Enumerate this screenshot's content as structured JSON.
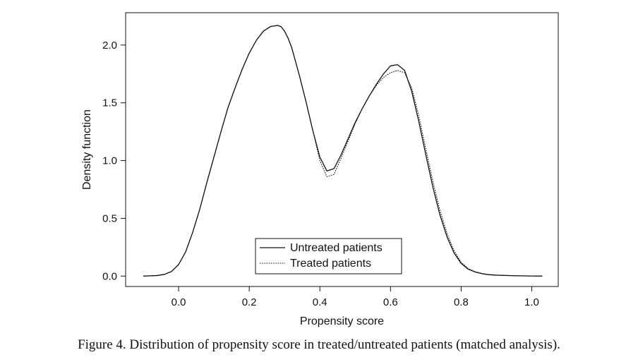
{
  "chart_data": {
    "type": "line",
    "title": "",
    "xlabel": "Propensity score",
    "ylabel": "Density function",
    "xlim": [
      -0.15,
      1.075
    ],
    "ylim": [
      -0.09,
      2.28
    ],
    "xticks": [
      0.0,
      0.2,
      0.4,
      0.6,
      0.8,
      1.0
    ],
    "xtick_labels": [
      "0.0",
      "0.2",
      "0.4",
      "0.6",
      "0.8",
      "1.0"
    ],
    "yticks": [
      0.0,
      0.5,
      1.0,
      1.5,
      2.0
    ],
    "ytick_labels": [
      "0.0",
      "0.5",
      "1.0",
      "1.5",
      "2.0"
    ],
    "grid": false,
    "legend_position": "bottom-center",
    "series": [
      {
        "name": "Untreated patients",
        "line_style": "solid",
        "color": "#111111",
        "x": [
          -0.1,
          -0.06,
          -0.04,
          -0.02,
          0.0,
          0.02,
          0.04,
          0.06,
          0.08,
          0.1,
          0.12,
          0.14,
          0.16,
          0.18,
          0.2,
          0.22,
          0.24,
          0.26,
          0.28,
          0.29,
          0.3,
          0.31,
          0.32,
          0.34,
          0.36,
          0.38,
          0.4,
          0.42,
          0.44,
          0.46,
          0.48,
          0.5,
          0.52,
          0.54,
          0.56,
          0.58,
          0.6,
          0.62,
          0.64,
          0.66,
          0.68,
          0.7,
          0.72,
          0.74,
          0.76,
          0.78,
          0.8,
          0.82,
          0.84,
          0.86,
          0.88,
          0.9,
          0.95,
          1.0,
          1.03
        ],
        "y": [
          0.0,
          0.005,
          0.015,
          0.04,
          0.1,
          0.21,
          0.38,
          0.58,
          0.81,
          1.03,
          1.25,
          1.46,
          1.63,
          1.79,
          1.93,
          2.04,
          2.12,
          2.16,
          2.17,
          2.16,
          2.12,
          2.06,
          1.98,
          1.76,
          1.52,
          1.26,
          1.03,
          0.91,
          0.93,
          1.05,
          1.19,
          1.33,
          1.45,
          1.56,
          1.66,
          1.75,
          1.82,
          1.83,
          1.78,
          1.6,
          1.34,
          1.05,
          0.77,
          0.53,
          0.34,
          0.2,
          0.11,
          0.06,
          0.035,
          0.02,
          0.012,
          0.008,
          0.003,
          0.001,
          0.0
        ]
      },
      {
        "name": "Treated patients",
        "line_style": "dotted",
        "color": "#111111",
        "x": [
          -0.1,
          -0.06,
          -0.04,
          -0.02,
          0.0,
          0.02,
          0.04,
          0.06,
          0.08,
          0.1,
          0.12,
          0.14,
          0.16,
          0.18,
          0.2,
          0.22,
          0.24,
          0.26,
          0.28,
          0.29,
          0.3,
          0.31,
          0.32,
          0.34,
          0.36,
          0.38,
          0.4,
          0.42,
          0.44,
          0.46,
          0.48,
          0.5,
          0.52,
          0.54,
          0.56,
          0.58,
          0.6,
          0.62,
          0.64,
          0.66,
          0.68,
          0.7,
          0.72,
          0.74,
          0.76,
          0.78,
          0.8,
          0.82,
          0.84,
          0.86,
          0.88,
          0.9,
          0.95,
          1.0,
          1.03
        ],
        "y": [
          0.0,
          0.005,
          0.015,
          0.04,
          0.1,
          0.21,
          0.38,
          0.58,
          0.81,
          1.03,
          1.25,
          1.46,
          1.63,
          1.79,
          1.93,
          2.04,
          2.12,
          2.16,
          2.17,
          2.16,
          2.12,
          2.06,
          1.98,
          1.76,
          1.52,
          1.26,
          1.0,
          0.86,
          0.88,
          1.02,
          1.17,
          1.32,
          1.45,
          1.56,
          1.65,
          1.72,
          1.76,
          1.78,
          1.76,
          1.63,
          1.39,
          1.1,
          0.82,
          0.57,
          0.37,
          0.22,
          0.12,
          0.065,
          0.038,
          0.022,
          0.013,
          0.008,
          0.003,
          0.001,
          0.0
        ]
      }
    ]
  },
  "caption": "Figure 4. Distribution of propensity score in treated/untreated patients (matched analysis)."
}
